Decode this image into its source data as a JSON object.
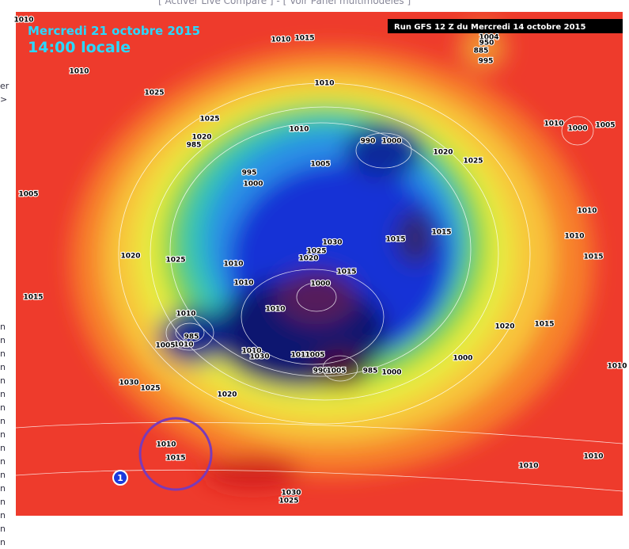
{
  "header": {
    "links": "[ Activer Live Compare ] - [ Voir Panel multimodèles ]"
  },
  "sidebar": {
    "texts": [
      "er",
      ">",
      "n",
      "n",
      "n",
      "n",
      "n",
      "n",
      "n",
      "n",
      "n",
      "n",
      "n",
      "n",
      "n",
      "n",
      "n",
      "n",
      "n"
    ]
  },
  "map": {
    "date": "Mercredi 21 octobre 2015",
    "time": "14:00 locale",
    "run": "Run GFS 12 Z du Mercredi 14 octobre 2015",
    "marker": "1",
    "pressure_labels": [
      1010,
      1010,
      1015,
      1004,
      950,
      885,
      995,
      1010,
      1010,
      1025,
      1025,
      1010,
      1020,
      985,
      990,
      1000,
      1020,
      1025,
      1005,
      995,
      1000,
      1010,
      1000,
      1005,
      1005,
      1010,
      1030,
      1025,
      1015,
      1015,
      1010,
      1015,
      1020,
      1025,
      1010,
      1020,
      1015,
      1010,
      1000,
      1010,
      1010,
      985,
      1010,
      1005,
      1010,
      1030,
      1010,
      1005,
      1000,
      990,
      1005,
      985,
      1000,
      1020,
      1015,
      1010,
      1015,
      1030,
      1025,
      1020,
      1010,
      1015,
      1010,
      1010,
      1030,
      1025
    ]
  }
}
